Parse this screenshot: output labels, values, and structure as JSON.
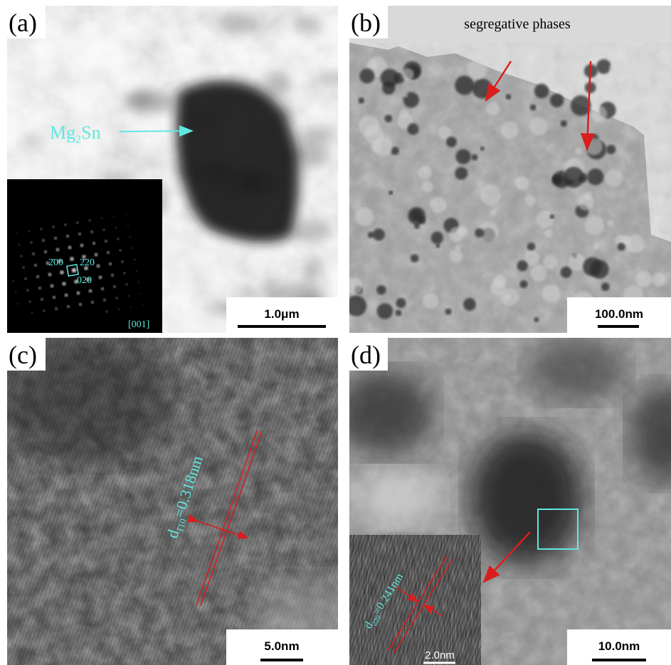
{
  "panels": [
    {
      "label": "(a)",
      "scale_bar": "1.0μm",
      "phase": {
        "base": "Mg",
        "sub": "2",
        "rest": "Sn"
      },
      "inset": {
        "zone_axis": "[001]",
        "indices": [
          "2̄00",
          "2̄20",
          "020"
        ]
      }
    },
    {
      "label": "(b)",
      "scale_bar": "100.0nm",
      "annotation": "segregative phases"
    },
    {
      "label": "(c)",
      "scale_bar": "5.0nm",
      "spacing": {
        "symbol": "d",
        "sub": "1̄10",
        "value": "=0.318nm"
      }
    },
    {
      "label": "(d)",
      "scale_bar": "10.0nm",
      "spacing": {
        "symbol": "d",
        "sub": "220",
        "value": "=0.241nm"
      },
      "inset_scale_bar": "2.0nm"
    }
  ]
}
